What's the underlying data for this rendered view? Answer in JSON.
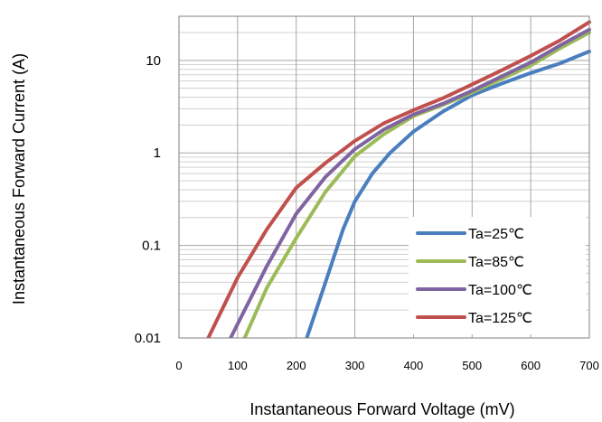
{
  "chart_data": {
    "type": "line",
    "title": "",
    "xlabel": "Instantaneous Forward Voltage (mV)",
    "ylabel": "Instantaneous Forward Current (A)",
    "xlim": [
      0,
      700
    ],
    "ylim": [
      0.01,
      30
    ],
    "yscale": "log",
    "grid": true,
    "legend_position": "lower-right",
    "x_ticks": [
      "0",
      "100",
      "200",
      "300",
      "400",
      "500",
      "600",
      "700"
    ],
    "y_ticks": [
      "0.01",
      "0.1",
      "1",
      "10"
    ],
    "series": [
      {
        "name": "Ta=25℃",
        "color": "#4a7ebf",
        "x": [
          218,
          250,
          280,
          300,
          330,
          360,
          400,
          450,
          500,
          550,
          600,
          650,
          700
        ],
        "y": [
          0.01,
          0.04,
          0.15,
          0.3,
          0.6,
          1.0,
          1.7,
          2.8,
          4.2,
          5.6,
          7.3,
          9.3,
          12.5
        ]
      },
      {
        "name": "Ta=85℃",
        "color": "#9bbb59",
        "x": [
          112,
          150,
          200,
          250,
          300,
          350,
          400,
          450,
          500,
          550,
          600,
          650,
          700
        ],
        "y": [
          0.01,
          0.035,
          0.12,
          0.38,
          0.92,
          1.6,
          2.5,
          3.3,
          4.5,
          6.3,
          8.8,
          13.5,
          20
        ]
      },
      {
        "name": "Ta=100℃",
        "color": "#8064a2",
        "x": [
          88,
          150,
          200,
          250,
          300,
          350,
          400,
          450,
          500,
          550,
          600,
          650,
          700
        ],
        "y": [
          0.01,
          0.06,
          0.22,
          0.55,
          1.1,
          1.8,
          2.6,
          3.4,
          4.7,
          6.7,
          9.5,
          14.5,
          21.5
        ]
      },
      {
        "name": "Ta=125℃",
        "color": "#c0504d",
        "x": [
          50,
          100,
          150,
          200,
          250,
          300,
          350,
          400,
          450,
          500,
          550,
          600,
          650,
          700
        ],
        "y": [
          0.01,
          0.045,
          0.15,
          0.42,
          0.78,
          1.35,
          2.1,
          2.9,
          3.9,
          5.5,
          7.8,
          11.2,
          16.5,
          26
        ]
      }
    ]
  }
}
